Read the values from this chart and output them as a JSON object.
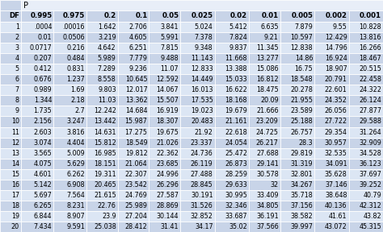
{
  "title": "P",
  "col_headers": [
    "DF",
    "0.995",
    "0.975",
    "0.2",
    "0.1",
    "0.05",
    "0.025",
    "0.02",
    "0.01",
    "0.005",
    "0.002",
    "0.001"
  ],
  "rows": [
    [
      "1",
      ".0004",
      ".00016",
      "1.642",
      "2.706",
      "3.841",
      "5.024",
      "5.412",
      "6.635",
      "7.879",
      "9.55",
      "10.828"
    ],
    [
      "2",
      "0.01",
      "0.0506",
      "3.219",
      "4.605",
      "5.991",
      "7.378",
      "7.824",
      "9.21",
      "10.597",
      "12.429",
      "13.816"
    ],
    [
      "3",
      "0.0717",
      "0.216",
      "4.642",
      "6.251",
      "7.815",
      "9.348",
      "9.837",
      "11.345",
      "12.838",
      "14.796",
      "16.266"
    ],
    [
      "4",
      "0.207",
      "0.484",
      "5.989",
      "7.779",
      "9.488",
      "11.143",
      "11.668",
      "13.277",
      "14.86",
      "16.924",
      "18.467"
    ],
    [
      "5",
      "0.412",
      "0.831",
      "7.289",
      "9.236",
      "11.07",
      "12.833",
      "13.388",
      "15.086",
      "16.75",
      "18.907",
      "20.515"
    ],
    [
      "6",
      "0.676",
      "1.237",
      "8.558",
      "10.645",
      "12.592",
      "14.449",
      "15.033",
      "16.812",
      "18.548",
      "20.791",
      "22.458"
    ],
    [
      "7",
      "0.989",
      "1.69",
      "9.803",
      "12.017",
      "14.067",
      "16.013",
      "16.622",
      "18.475",
      "20.278",
      "22.601",
      "24.322"
    ],
    [
      "8",
      "1.344",
      "2.18",
      "11.03",
      "13.362",
      "15.507",
      "17.535",
      "18.168",
      "20.09",
      "21.955",
      "24.352",
      "26.124"
    ],
    [
      "9",
      "1.735",
      "2.7",
      "12.242",
      "14.684",
      "16.919",
      "19.023",
      "19.679",
      "21.666",
      "23.589",
      "26.056",
      "27.877"
    ],
    [
      "10",
      "2.156",
      "3.247",
      "13.442",
      "15.987",
      "18.307",
      "20.483",
      "21.161",
      "23.209",
      "25.188",
      "27.722",
      "29.588"
    ],
    [
      "11",
      "2.603",
      "3.816",
      "14.631",
      "17.275",
      "19.675",
      "21.92",
      "22.618",
      "24.725",
      "26.757",
      "29.354",
      "31.264"
    ],
    [
      "12",
      "3.074",
      "4.404",
      "15.812",
      "18.549",
      "21.026",
      "23.337",
      "24.054",
      "26.217",
      "28.3",
      "30.957",
      "32.909"
    ],
    [
      "13",
      "3.565",
      "5.009",
      "16.985",
      "19.812",
      "22.362",
      "24.736",
      "25.472",
      "27.688",
      "29.819",
      "32.535",
      "34.528"
    ],
    [
      "14",
      "4.075",
      "5.629",
      "18.151",
      "21.064",
      "23.685",
      "26.119",
      "26.873",
      "29.141",
      "31.319",
      "34.091",
      "36.123"
    ],
    [
      "15",
      "4.601",
      "6.262",
      "19.311",
      "22.307",
      "24.996",
      "27.488",
      "28.259",
      "30.578",
      "32.801",
      "35.628",
      "37.697"
    ],
    [
      "16",
      "5.142",
      "6.908",
      "20.465",
      "23.542",
      "26.296",
      "28.845",
      "29.633",
      "32",
      "34.267",
      "37.146",
      "39.252"
    ],
    [
      "17",
      "5.697",
      "7.564",
      "21.615",
      "24.769",
      "27.587",
      "30.191",
      "30.995",
      "33.409",
      "35.718",
      "38.648",
      "40.79"
    ],
    [
      "18",
      "6.265",
      "8.231",
      "22.76",
      "25.989",
      "28.869",
      "31.526",
      "32.346",
      "34.805",
      "37.156",
      "40.136",
      "42.312"
    ],
    [
      "19",
      "6.844",
      "8.907",
      "23.9",
      "27.204",
      "30.144",
      "32.852",
      "33.687",
      "36.191",
      "38.582",
      "41.61",
      "43.82"
    ],
    [
      "20",
      "7.434",
      "9.591",
      "25.038",
      "28.412",
      "31.41",
      "34.17",
      "35.02",
      "37.566",
      "39.997",
      "43.072",
      "45.315"
    ]
  ],
  "header_bg": "#c8d4e8",
  "row_bg_light": "#dce6f4",
  "row_bg_dark": "#c8d4e8",
  "border_color": "#ffffff",
  "font_size": 5.8,
  "header_font_size": 6.2,
  "title_font_size": 7.0,
  "col_widths_rel": [
    0.7,
    1.1,
    1.1,
    1.05,
    1.05,
    1.05,
    1.15,
    1.15,
    1.05,
    1.15,
    1.15,
    1.15
  ]
}
